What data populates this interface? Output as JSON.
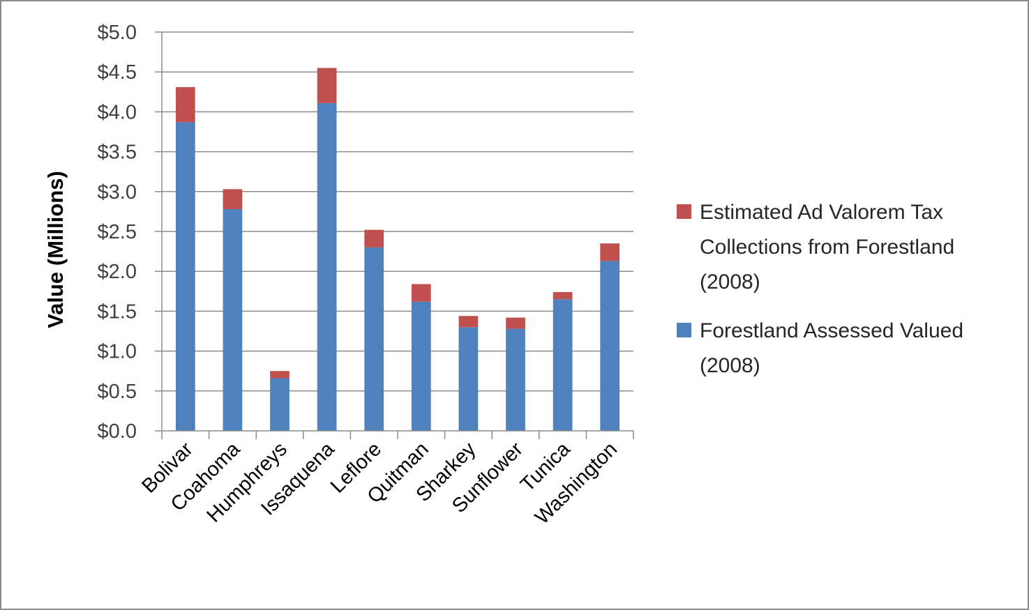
{
  "chart_data": {
    "type": "bar",
    "stacked": true,
    "title": "",
    "xlabel": "",
    "ylabel": "Value (Millions)",
    "ylim": [
      0,
      5
    ],
    "ytick_step": 0.5,
    "yticks": [
      "$0.0",
      "$0.5",
      "$1.0",
      "$1.5",
      "$2.0",
      "$2.5",
      "$3.0",
      "$3.5",
      "$4.0",
      "$4.5",
      "$5.0"
    ],
    "grid": true,
    "legend_position": "right",
    "categories": [
      "Bolivar",
      "Coahoma",
      "Humphreys",
      "Issaquena",
      "Leflore",
      "Quitman",
      "Sharkey",
      "Sunflower",
      "Tunica",
      "Washington"
    ],
    "series": [
      {
        "name": "Forestland Assessed Valued (2008)",
        "legend_lines": [
          "Forestland Assessed Valued",
          "(2008)"
        ],
        "color": "#4f81bd",
        "values": [
          3.87,
          2.78,
          0.66,
          4.11,
          2.3,
          1.62,
          1.3,
          1.28,
          1.65,
          2.13
        ]
      },
      {
        "name": "Estimated Ad Valorem Tax Collections from Forestland (2008)",
        "legend_lines": [
          "Estimated Ad Valorem Tax",
          "Collections from Forestland",
          "(2008)"
        ],
        "color": "#c0504d",
        "values": [
          0.44,
          0.25,
          0.09,
          0.44,
          0.22,
          0.22,
          0.14,
          0.14,
          0.09,
          0.22
        ]
      }
    ]
  }
}
